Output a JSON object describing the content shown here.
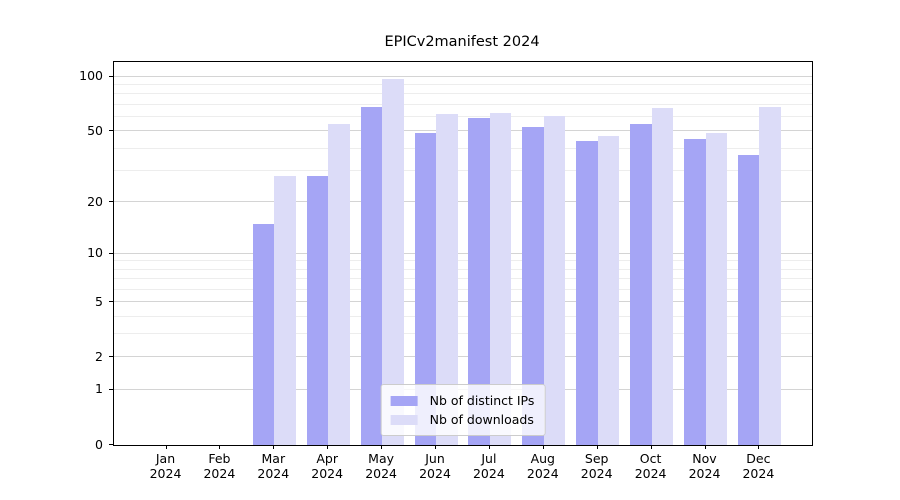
{
  "title": "EPICv2manifest 2024",
  "chart_data": {
    "type": "bar",
    "title": "EPICv2manifest 2024",
    "categories": [
      "Jan 2024",
      "Feb 2024",
      "Mar 2024",
      "Apr 2024",
      "May 2024",
      "Jun 2024",
      "Jul 2024",
      "Aug 2024",
      "Sep 2024",
      "Oct 2024",
      "Nov 2024",
      "Dec 2024"
    ],
    "series": [
      {
        "name": "Nb of distinct IPs",
        "color": "#a5a5f5",
        "values": [
          0,
          0,
          15,
          28,
          68,
          49,
          59,
          53,
          44,
          55,
          45,
          37
        ]
      },
      {
        "name": "Nb of downloads",
        "color": "#dcdcf8",
        "values": [
          0,
          0,
          28,
          55,
          97,
          62,
          63,
          61,
          47,
          67,
          49,
          68
        ]
      }
    ],
    "xlabel": "",
    "ylabel": "",
    "y_scale": "log10(1+v)",
    "ylim": [
      0,
      120.4
    ],
    "y_ticks": [
      0,
      1,
      2,
      5,
      10,
      20,
      50,
      100
    ],
    "y_minor_ticks": [
      3,
      4,
      6,
      7,
      8,
      9,
      30,
      40,
      60,
      70,
      80,
      90
    ],
    "grid": true,
    "legend_position": "lower center",
    "bar_colors": {
      "distinct_ips": "#a5a5f5",
      "downloads": "#dcdcf8"
    },
    "gridline_colors": {
      "major": "#d4d4d4",
      "minor": "#ededed"
    }
  }
}
